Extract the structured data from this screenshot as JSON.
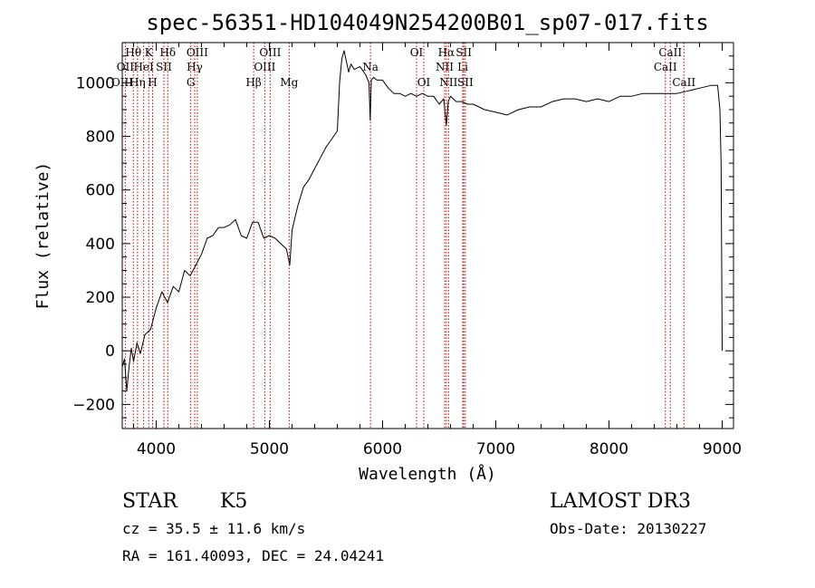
{
  "chart_data": {
    "type": "line",
    "title": "spec-56351-HD104049N254200B01_sp07-017.fits",
    "xlabel": "Wavelength (Å)",
    "ylabel": "Flux (relative)",
    "xlim": [
      3700,
      9100
    ],
    "ylim": [
      -290,
      1150
    ],
    "xticks": [
      4000,
      5000,
      6000,
      7000,
      8000,
      9000
    ],
    "xtick_labels": [
      "4000",
      "5000",
      "6000",
      "7000",
      "8000",
      "9000"
    ],
    "yticks": [
      -200,
      0,
      200,
      400,
      600,
      800,
      1000
    ],
    "ytick_labels": [
      "−200",
      "0",
      "200",
      "400",
      "600",
      "800",
      "1000"
    ],
    "series": [
      {
        "name": "spectrum",
        "x": [
          3700,
          3720,
          3740,
          3760,
          3780,
          3800,
          3830,
          3860,
          3900,
          3950,
          4000,
          4050,
          4100,
          4150,
          4200,
          4250,
          4300,
          4350,
          4400,
          4450,
          4500,
          4550,
          4600,
          4650,
          4700,
          4750,
          4800,
          4850,
          4900,
          4950,
          5000,
          5050,
          5100,
          5150,
          5180,
          5200,
          5250,
          5300,
          5350,
          5400,
          5450,
          5500,
          5550,
          5600,
          5620,
          5640,
          5660,
          5680,
          5700,
          5720,
          5750,
          5800,
          5850,
          5880,
          5890,
          5900,
          5920,
          5950,
          6000,
          6050,
          6100,
          6150,
          6200,
          6250,
          6300,
          6350,
          6400,
          6450,
          6500,
          6540,
          6563,
          6580,
          6600,
          6650,
          6700,
          6750,
          6800,
          6900,
          7000,
          7100,
          7200,
          7300,
          7400,
          7500,
          7600,
          7700,
          7800,
          7900,
          8000,
          8100,
          8200,
          8300,
          8400,
          8500,
          8600,
          8700,
          8800,
          8900,
          8960,
          8980,
          8990,
          9000
        ],
        "y": [
          -60,
          -30,
          -150,
          -60,
          10,
          -40,
          30,
          -10,
          60,
          80,
          160,
          220,
          180,
          240,
          220,
          300,
          280,
          320,
          360,
          420,
          430,
          460,
          460,
          470,
          490,
          430,
          420,
          480,
          480,
          420,
          430,
          420,
          400,
          380,
          320,
          450,
          540,
          610,
          640,
          680,
          720,
          760,
          790,
          820,
          1000,
          1090,
          1120,
          1080,
          1040,
          1070,
          1050,
          1060,
          1030,
          1000,
          860,
          1010,
          1020,
          1010,
          1010,
          980,
          960,
          960,
          950,
          960,
          950,
          960,
          950,
          950,
          920,
          940,
          840,
          930,
          950,
          930,
          930,
          920,
          920,
          900,
          890,
          880,
          900,
          910,
          910,
          930,
          940,
          940,
          930,
          940,
          930,
          950,
          950,
          960,
          960,
          960,
          960,
          970,
          980,
          990,
          990,
          900,
          700,
          0
        ]
      }
    ],
    "line_marks": [
      {
        "label": "Hθ",
        "wave": 3798,
        "row": 1
      },
      {
        "label": "K",
        "wave": 3934,
        "row": 1
      },
      {
        "label": "Hδ",
        "wave": 4102,
        "row": 1
      },
      {
        "label": "OIII",
        "wave": 4363,
        "row": 1
      },
      {
        "label": "OIII",
        "wave": 5007,
        "row": 1
      },
      {
        "label": "OI",
        "wave": 6300,
        "row": 1
      },
      {
        "label": "Hα",
        "wave": 6563,
        "row": 1
      },
      {
        "label": "SII",
        "wave": 6717,
        "row": 1
      },
      {
        "label": "CaII",
        "wave": 8542,
        "row": 1
      },
      {
        "label": "OII",
        "wave": 3727,
        "row": 2
      },
      {
        "label": "HeI",
        "wave": 3889,
        "row": 2
      },
      {
        "label": "SII",
        "wave": 4068,
        "row": 2
      },
      {
        "label": "Hγ",
        "wave": 4340,
        "row": 2
      },
      {
        "label": "OIII",
        "wave": 4959,
        "row": 2
      },
      {
        "label": "Na",
        "wave": 5893,
        "row": 2
      },
      {
        "label": "NII",
        "wave": 6548,
        "row": 2
      },
      {
        "label": "Li",
        "wave": 6708,
        "row": 2
      },
      {
        "label": "CaII",
        "wave": 8498,
        "row": 2
      },
      {
        "label": "OIII",
        "wave": 3700,
        "row": 3
      },
      {
        "label": "Hη",
        "wave": 3835,
        "row": 3
      },
      {
        "label": "H",
        "wave": 3968,
        "row": 3
      },
      {
        "label": "G",
        "wave": 4305,
        "row": 3
      },
      {
        "label": "Hβ",
        "wave": 4861,
        "row": 3
      },
      {
        "label": "Mg",
        "wave": 5175,
        "row": 3
      },
      {
        "label": "OI",
        "wave": 6364,
        "row": 3
      },
      {
        "label": "NII",
        "wave": 6583,
        "row": 3
      },
      {
        "label": "SII",
        "wave": 6731,
        "row": 3
      },
      {
        "label": "CaII",
        "wave": 8662,
        "row": 3
      }
    ],
    "colors": {
      "spectrum": "#000000",
      "line_marks": "#cc0000",
      "axes": "#000000"
    }
  },
  "footer": {
    "class_label": "STAR",
    "subclass_label": "K5",
    "survey": "LAMOST DR3",
    "cz": "cz = 35.5 ± 11.6 km/s",
    "obs_date": "Obs-Date: 20130227",
    "radec": "RA = 161.40093, DEC =  24.04241"
  }
}
